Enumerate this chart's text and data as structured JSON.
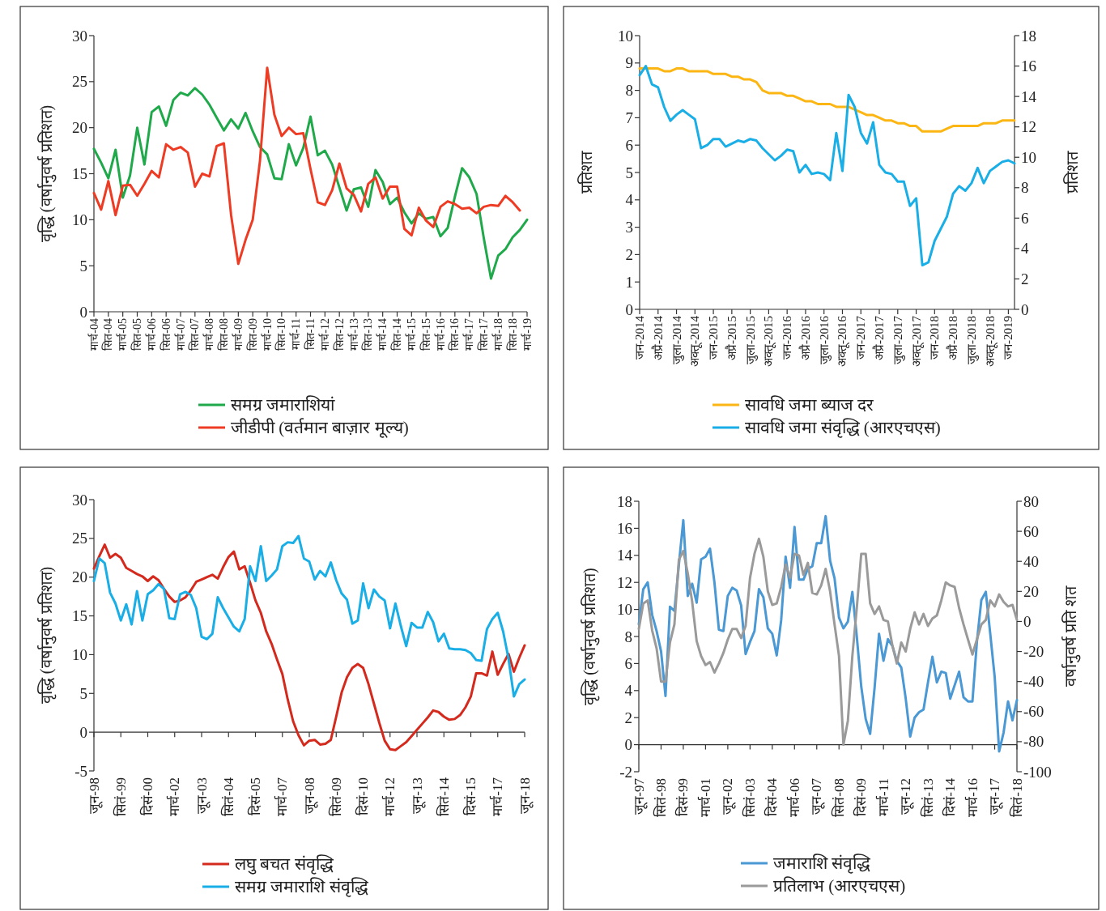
{
  "chart_data": [
    {
      "type": "line",
      "ylabel": "वृद्धि (वर्षानुवर्ष प्रतिशत)",
      "legend": "bottom",
      "ylim": [
        0,
        30
      ],
      "yticks": [
        0,
        5,
        10,
        15,
        20,
        25,
        30
      ],
      "categories": [
        "मार्च-04",
        null,
        "सित-04",
        null,
        "मार्च-05",
        null,
        "सित-05",
        null,
        "मार्च-06",
        null,
        "सित-06",
        null,
        "मार्च-07",
        null,
        "सित-07",
        null,
        "मार्च-08",
        null,
        "सित-08",
        null,
        "मार्च-09",
        null,
        "सित-09",
        null,
        "मार्च-10",
        null,
        "सित-10",
        null,
        "मार्च-11",
        null,
        "सित-11",
        null,
        "मार्च-12",
        null,
        "सित-12",
        null,
        "मार्च-13",
        null,
        "सित-13",
        null,
        "मार्च-14",
        null,
        "सित-14",
        null,
        "मार्च-15",
        null,
        "सित-15",
        null,
        "मार्च-16",
        null,
        "सित-16",
        null,
        "मार्च-17",
        null,
        "सित-17",
        null,
        "मार्च-18",
        null,
        "सित-18",
        null,
        "मार्च-19"
      ],
      "series": [
        {
          "name": "समग्र जमाराशियां",
          "color": "#1fa94a",
          "values": [
            17.7,
            16.2,
            14.5,
            17.6,
            12.4,
            14.8,
            20.0,
            16.0,
            21.7,
            22.3,
            20.2,
            23.0,
            23.8,
            23.5,
            24.3,
            23.6,
            22.5,
            21.1,
            19.7,
            20.9,
            19.9,
            21.6,
            19.6,
            17.9,
            17.1,
            14.5,
            14.4,
            18.2,
            15.9,
            17.8,
            21.2,
            17.0,
            17.5,
            16.0,
            13.5,
            11.0,
            13.3,
            13.5,
            11.4,
            15.4,
            14.1,
            11.7,
            12.4,
            10.8,
            9.6,
            10.7,
            10.1,
            10.3,
            8.2,
            9.1,
            12.5,
            15.6,
            14.6,
            12.8,
            8.0,
            3.6,
            6.1,
            6.8,
            8.1,
            8.9,
            10.0
          ]
        },
        {
          "name": "जीडीपी (वर्तमान बाज़ार मूल्य)",
          "color": "#ee3b24",
          "values": [
            12.9,
            11.1,
            14.2,
            10.5,
            13.7,
            13.8,
            12.6,
            13.9,
            15.3,
            14.6,
            18.2,
            17.6,
            17.9,
            17.3,
            13.6,
            15.0,
            14.7,
            18.0,
            18.3,
            10.5,
            5.2,
            7.8,
            10.0,
            16.4,
            26.5,
            21.4,
            19.1,
            20.0,
            19.3,
            19.4,
            15.5,
            11.9,
            11.6,
            13.2,
            16.1,
            13.4,
            12.7,
            10.9,
            13.9,
            14.6,
            12.3,
            13.6,
            13.6,
            9.0,
            8.3,
            11.3,
            9.9,
            9.2,
            11.4,
            12.0,
            11.7,
            11.2,
            11.3,
            10.7,
            11.4,
            11.6,
            11.5,
            12.6,
            11.9,
            11.0,
            null
          ]
        }
      ]
    },
    {
      "type": "line",
      "ylabel": "प्रतिशत",
      "y2label": "प्रतिशत",
      "legend": "bottom",
      "ylim": [
        0,
        10
      ],
      "yticks": [
        0,
        1,
        2,
        3,
        4,
        5,
        6,
        7,
        8,
        9,
        10
      ],
      "y2lim": [
        0,
        18
      ],
      "y2ticks": [
        0,
        2,
        4,
        6,
        8,
        10,
        12,
        14,
        16,
        18
      ],
      "categories": [
        "जन-2014",
        null,
        null,
        "अप्रै-2014",
        null,
        null,
        "जुला-2014",
        null,
        null,
        "अक्तू-2014",
        null,
        null,
        "जन-2015",
        null,
        null,
        "अप्रै-2015",
        null,
        null,
        "जुला-2015",
        null,
        null,
        "अक्तू-2015",
        null,
        null,
        "जन-2016",
        null,
        null,
        "अप्रै-2016",
        null,
        null,
        "जुला-2016",
        null,
        null,
        "अक्तू-2016",
        null,
        null,
        "जन-2017",
        null,
        null,
        "अप्रै-2017",
        null,
        null,
        "जुला-2017",
        null,
        null,
        "अक्तू-2017",
        null,
        null,
        "जन-2018",
        null,
        null,
        "अप्रै-2018",
        null,
        null,
        "जुला-2018",
        null,
        null,
        "अक्तू-2018",
        null,
        null,
        "जन-2019",
        null
      ],
      "series": [
        {
          "name": "सावधि जमा ब्याज दर",
          "color": "#fbb614",
          "values": [
            8.8,
            8.8,
            8.8,
            8.8,
            8.7,
            8.7,
            8.8,
            8.8,
            8.7,
            8.7,
            8.7,
            8.7,
            8.6,
            8.6,
            8.6,
            8.5,
            8.5,
            8.4,
            8.4,
            8.3,
            8.0,
            7.9,
            7.9,
            7.9,
            7.8,
            7.8,
            7.7,
            7.6,
            7.6,
            7.5,
            7.5,
            7.5,
            7.4,
            7.4,
            7.4,
            7.3,
            7.2,
            7.1,
            7.1,
            7.0,
            6.9,
            6.9,
            6.8,
            6.8,
            6.7,
            6.7,
            6.5,
            6.5,
            6.5,
            6.5,
            6.6,
            6.7,
            6.7,
            6.7,
            6.7,
            6.7,
            6.8,
            6.8,
            6.8,
            6.9,
            6.9,
            6.9
          ]
        },
        {
          "name": "सावधि जमा संवृद्धि (आरएचएस)",
          "color": "#19aee6",
          "axis": "y2",
          "values": [
            15.4,
            16.0,
            14.8,
            14.6,
            13.3,
            12.4,
            12.8,
            13.1,
            12.8,
            12.5,
            10.6,
            10.8,
            11.2,
            11.2,
            10.7,
            10.9,
            11.1,
            11.0,
            11.2,
            11.1,
            10.6,
            10.2,
            9.8,
            10.1,
            10.5,
            10.4,
            9.0,
            9.5,
            8.9,
            9.0,
            8.9,
            8.5,
            11.6,
            9.1,
            14.1,
            13.3,
            11.6,
            10.9,
            12.3,
            9.5,
            9.0,
            8.9,
            8.4,
            8.4,
            6.8,
            7.3,
            2.9,
            3.1,
            4.5,
            5.3,
            6.1,
            7.6,
            8.1,
            7.8,
            8.3,
            9.3,
            8.3,
            9.1,
            9.4,
            9.7,
            9.8,
            9.6
          ]
        }
      ]
    },
    {
      "type": "line",
      "ylabel": "वृद्धि (वर्षानुवर्ष प्रतिशत)",
      "legend": "bottom",
      "ylim": [
        -5,
        30
      ],
      "yticks": [
        -5,
        0,
        5,
        10,
        15,
        20,
        25,
        30
      ],
      "categories": [
        "जून-98",
        null,
        null,
        null,
        null,
        "सितं-99",
        null,
        null,
        null,
        null,
        "दिसं-00",
        null,
        null,
        null,
        null,
        "मार्च-02",
        null,
        null,
        null,
        null,
        "जून-03",
        null,
        null,
        null,
        null,
        "सितं-04",
        null,
        null,
        null,
        null,
        "दिसं-05",
        null,
        null,
        null,
        null,
        "मार्च-07",
        null,
        null,
        null,
        null,
        "जून-08",
        null,
        null,
        null,
        null,
        "सितं-09",
        null,
        null,
        null,
        null,
        "दिसं-10",
        null,
        null,
        null,
        null,
        "मार्च-12",
        null,
        null,
        null,
        null,
        "जून-13",
        null,
        null,
        null,
        null,
        "सितं-14",
        null,
        null,
        null,
        null,
        "दिसं-15",
        null,
        null,
        null,
        null,
        "मार्च-17",
        null,
        null,
        null,
        null,
        "जून-18"
      ],
      "series": [
        {
          "name": "लघु बचत संवृद्धि",
          "color": "#d42a1e",
          "values": [
            21.1,
            22.7,
            24.2,
            22.5,
            23.0,
            22.5,
            21.2,
            20.8,
            20.4,
            20.1,
            19.5,
            20.1,
            19.6,
            18.5,
            17.5,
            16.8,
            17.0,
            17.4,
            18.3,
            19.4,
            19.7,
            20.0,
            20.3,
            19.8,
            21.3,
            22.6,
            23.3,
            21.0,
            21.4,
            19.3,
            17.0,
            15.4,
            13.0,
            11.4,
            9.4,
            7.5,
            4.2,
            1.4,
            -0.4,
            -1.7,
            -1.1,
            -1.0,
            -1.6,
            -1.5,
            -1.0,
            2.0,
            5.1,
            7.1,
            8.3,
            8.8,
            8.3,
            6.2,
            3.7,
            1.2,
            -1.1,
            -2.2,
            -2.3,
            -1.8,
            -1.3,
            -0.5,
            0.3,
            1.1,
            1.9,
            2.8,
            2.6,
            2.0,
            1.6,
            1.7,
            2.2,
            3.2,
            4.6,
            7.6,
            7.6,
            7.3,
            10.4,
            7.4,
            8.8,
            10.1,
            7.8,
            9.6,
            11.2
          ]
        },
        {
          "name": "समग्र जमाराशि संवृद्धि",
          "color": "#19aee6",
          "values": [
            19.5,
            22.4,
            21.8,
            18.0,
            16.6,
            14.4,
            16.5,
            13.9,
            18.2,
            14.4,
            17.8,
            18.3,
            19.1,
            18.5,
            14.7,
            14.6,
            17.8,
            18.1,
            17.7,
            16.0,
            12.3,
            12.0,
            12.7,
            17.4,
            16.0,
            14.8,
            13.6,
            13.0,
            14.6,
            21.4,
            19.5,
            24.0,
            19.5,
            20.2,
            21.0,
            24.0,
            24.5,
            24.4,
            25.3,
            22.4,
            22.0,
            19.7,
            20.8,
            20.1,
            21.9,
            19.6,
            17.9,
            17.1,
            14.0,
            14.4,
            19.2,
            16.0,
            18.4,
            17.5,
            17.0,
            13.4,
            16.6,
            13.7,
            11.1,
            14.1,
            13.5,
            13.5,
            15.5,
            14.2,
            11.7,
            12.7,
            10.8,
            10.7,
            10.7,
            10.6,
            10.2,
            9.3,
            9.2,
            13.3,
            14.6,
            15.4,
            13.0,
            9.5,
            4.6,
            6.2,
            6.8
          ]
        }
      ]
    },
    {
      "type": "line",
      "ylabel": "वृद्धि (वर्षानुवर्ष प्रतिशत)",
      "y2label": "वर्षानुवर्ष प्रति शत",
      "legend": "bottom",
      "ylim": [
        -2,
        18
      ],
      "yticks": [
        -2,
        0,
        2,
        4,
        6,
        8,
        10,
        12,
        14,
        16,
        18
      ],
      "y2lim": [
        -100,
        80
      ],
      "y2ticks": [
        -100,
        -80,
        -60,
        -40,
        -20,
        0,
        20,
        40,
        60,
        80
      ],
      "categories": [
        "जून-97",
        null,
        null,
        null,
        null,
        "सितं-98",
        null,
        null,
        null,
        null,
        "दिसं-99",
        null,
        null,
        null,
        null,
        "मार्च-01",
        null,
        null,
        null,
        null,
        "जून-02",
        null,
        null,
        null,
        null,
        "सितं-03",
        null,
        null,
        null,
        null,
        "दिसं-04",
        null,
        null,
        null,
        null,
        "मार्च-06",
        null,
        null,
        null,
        null,
        "जून-07",
        null,
        null,
        null,
        null,
        "सितं-08",
        null,
        null,
        null,
        null,
        "दिसं-09",
        null,
        null,
        null,
        null,
        "मार्च-11",
        null,
        null,
        null,
        null,
        "जून-12",
        null,
        null,
        null,
        null,
        "सितं-13",
        null,
        null,
        null,
        null,
        "दिसं-14",
        null,
        null,
        null,
        null,
        "मार्च-16",
        null,
        null,
        null,
        null,
        "जून-17",
        null,
        null,
        null,
        null,
        "सितं-18"
      ],
      "series": [
        {
          "name": "जमाराशि संवृद्धि",
          "color": "#4a98d4",
          "values": [
            8.9,
            11.5,
            12.0,
            9.6,
            8.4,
            6.9,
            3.6,
            10.2,
            9.9,
            13.3,
            16.6,
            11.0,
            11.9,
            10.5,
            13.7,
            13.9,
            14.5,
            12.0,
            8.5,
            8.4,
            11.0,
            11.6,
            11.4,
            10.3,
            6.7,
            7.6,
            8.4,
            11.5,
            10.9,
            8.6,
            8.2,
            6.6,
            9.2,
            13.9,
            11.6,
            16.1,
            12.2,
            12.2,
            13.0,
            13.2,
            14.9,
            14.9,
            16.9,
            13.6,
            12.3,
            9.4,
            8.6,
            9.1,
            11.3,
            8.0,
            4.3,
            1.9,
            0.8,
            4.2,
            8.2,
            6.2,
            7.8,
            7.3,
            6.2,
            5.7,
            3.4,
            0.6,
            2.0,
            2.4,
            2.6,
            4.6,
            6.5,
            4.6,
            5.4,
            5.3,
            3.4,
            4.4,
            5.4,
            3.5,
            3.2,
            3.2,
            7.6,
            10.7,
            11.3,
            8.2,
            5.0,
            -0.5,
            0.9,
            3.2,
            1.8,
            3.3
          ]
        },
        {
          "name": "प्रतिलाभ (आरएचएस)",
          "color": "#9a9a9a",
          "axis": "y2",
          "values": [
            -5,
            12,
            14,
            -6,
            -18,
            -40,
            -40,
            -14,
            -2,
            41,
            47,
            32,
            13,
            -13,
            -23,
            -29,
            -27,
            -34,
            -28,
            -21,
            -12,
            -5,
            -5,
            -11,
            -3,
            29,
            45,
            55,
            43,
            20,
            11,
            12,
            23,
            38,
            29,
            45,
            44,
            31,
            39,
            19,
            18,
            24,
            35,
            20,
            -2,
            -23,
            -82,
            -66,
            -23,
            9,
            45,
            45,
            12,
            5,
            10,
            1,
            0,
            -16,
            -28,
            -14,
            -20,
            -5,
            6,
            -2,
            5,
            -3,
            2,
            4,
            14,
            26,
            24,
            23,
            9,
            -2,
            -12,
            -22,
            -12,
            -2,
            1,
            14,
            10,
            18,
            13,
            10,
            11,
            1
          ]
        }
      ]
    }
  ]
}
